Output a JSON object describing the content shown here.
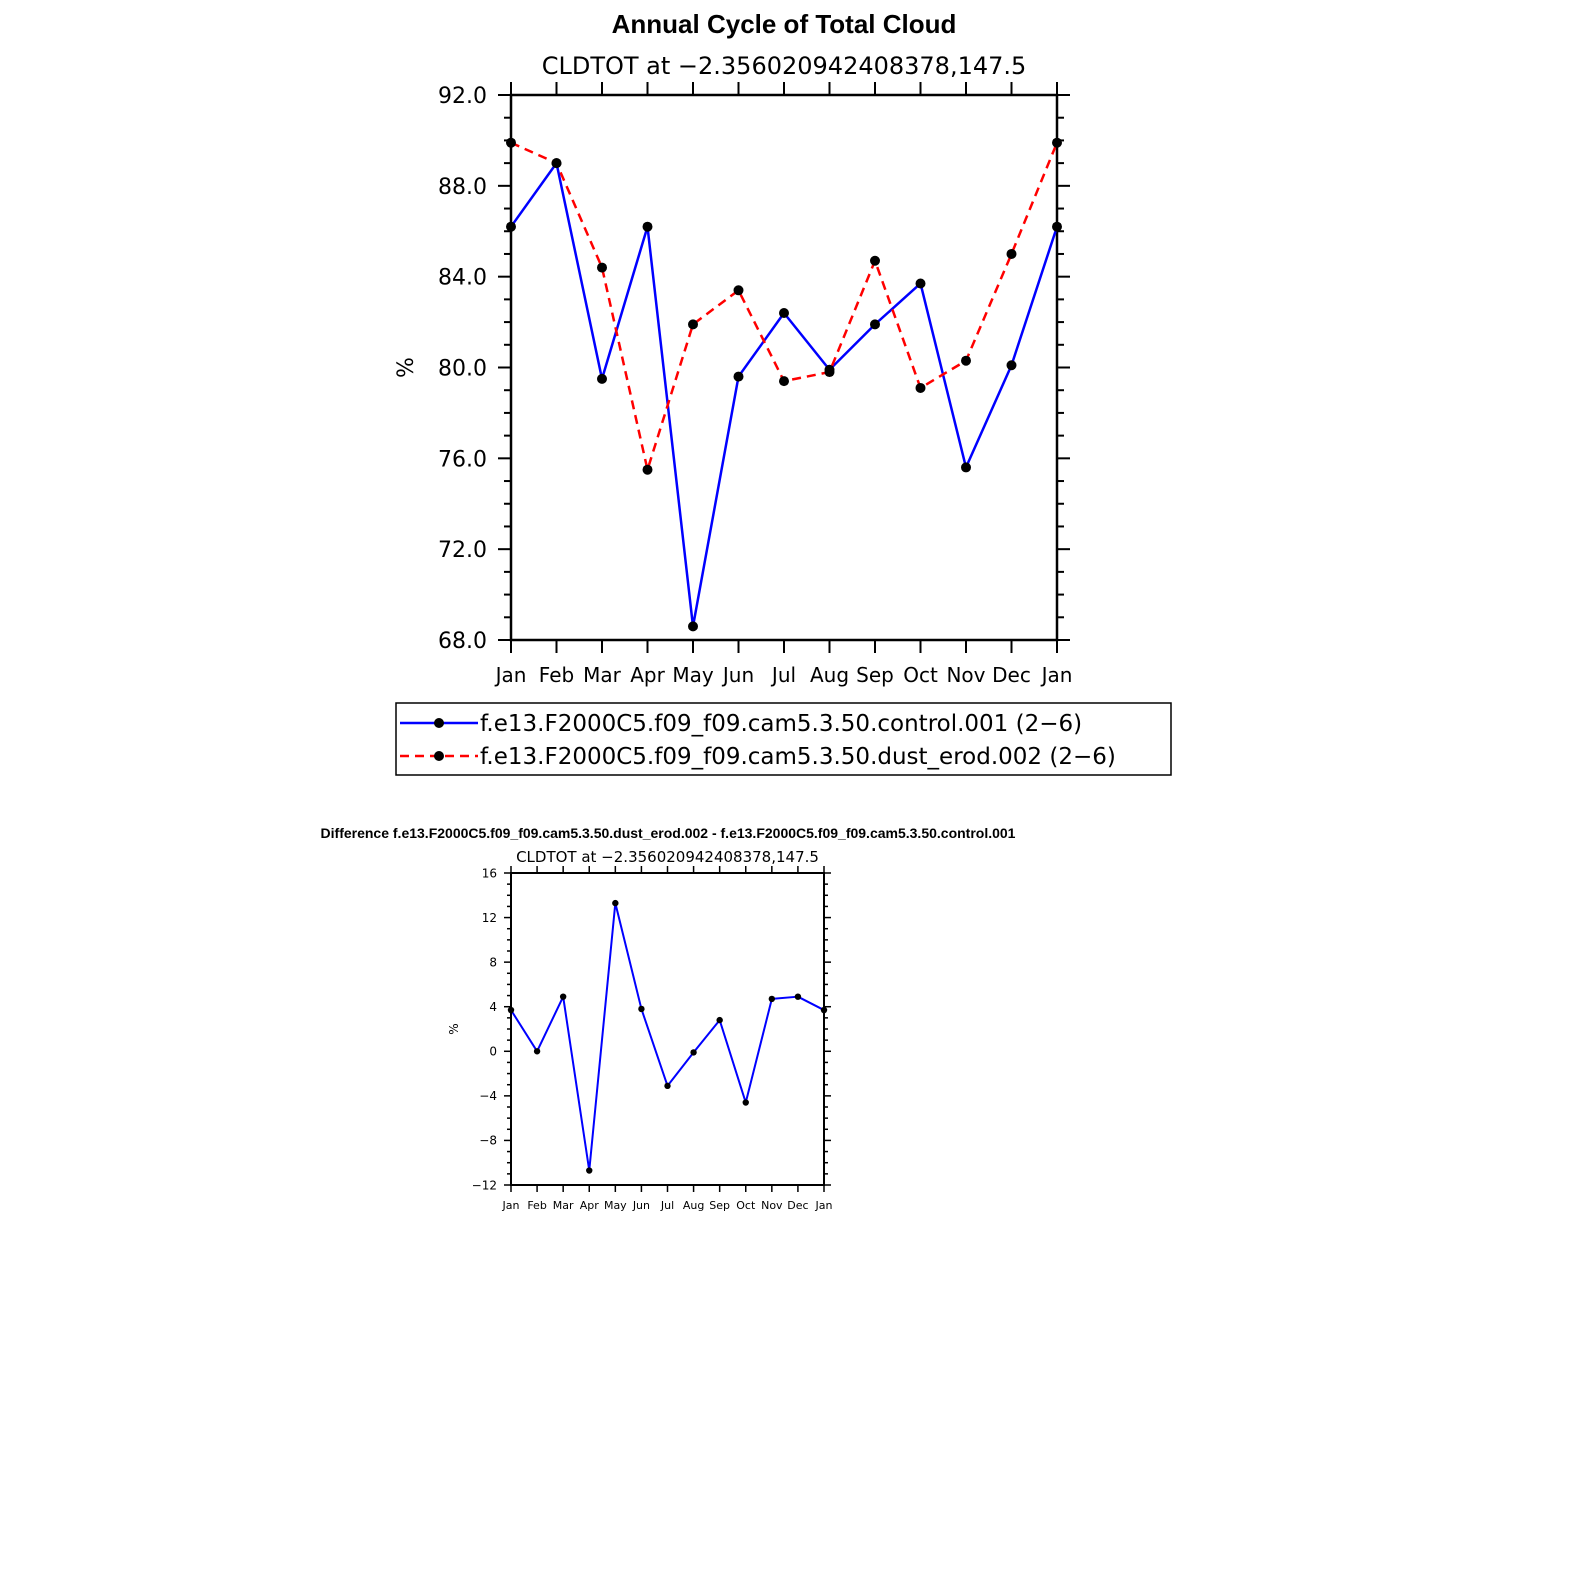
{
  "chart_data": [
    {
      "type": "line",
      "title": "Annual Cycle of Total Cloud",
      "subtitle": "CLDTOT at −2.356020942408378,147.5",
      "ylabel": "%",
      "xlabel": "",
      "ylim": [
        68,
        92
      ],
      "yticks": [
        "68.0",
        "72.0",
        "76.0",
        "80.0",
        "84.0",
        "88.0",
        "92.0"
      ],
      "ytick_values": [
        68,
        72,
        76,
        80,
        84,
        88,
        92
      ],
      "categories": [
        "Jan",
        "Feb",
        "Mar",
        "Apr",
        "May",
        "Jun",
        "Jul",
        "Aug",
        "Sep",
        "Oct",
        "Nov",
        "Dec",
        "Jan"
      ],
      "grid": false,
      "legend_position": "bottom",
      "series": [
        {
          "name": "f.e13.F2000C5.f09_f09.cam5.3.50.control.001 (2−6)",
          "color": "#0000ff",
          "style": "solid",
          "values": [
            86.2,
            89.0,
            79.5,
            86.2,
            68.6,
            79.6,
            82.4,
            79.9,
            81.9,
            83.7,
            75.6,
            80.1,
            86.2
          ]
        },
        {
          "name": "f.e13.F2000C5.f09_f09.cam5.3.50.dust_erod.002 (2−6)",
          "color": "#ff0000",
          "style": "dashed",
          "values": [
            89.9,
            89.0,
            84.4,
            75.5,
            81.9,
            83.4,
            79.4,
            79.8,
            84.7,
            79.1,
            80.3,
            85.0,
            89.9
          ]
        }
      ]
    },
    {
      "type": "line",
      "title": "Difference f.e13.F2000C5.f09_f09.cam5.3.50.dust_erod.002 - f.e13.F2000C5.f09_f09.cam5.3.50.control.001",
      "subtitle": "CLDTOT at −2.356020942408378,147.5",
      "ylabel": "%",
      "xlabel": "",
      "ylim": [
        -12,
        16
      ],
      "yticks": [
        "−12",
        "−8",
        "−4",
        "0",
        "4",
        "8",
        "12",
        "16"
      ],
      "ytick_values": [
        -12,
        -8,
        -4,
        0,
        4,
        8,
        12,
        16
      ],
      "categories": [
        "Jan",
        "Feb",
        "Mar",
        "Apr",
        "May",
        "Jun",
        "Jul",
        "Aug",
        "Sep",
        "Oct",
        "Nov",
        "Dec",
        "Jan"
      ],
      "grid": false,
      "series": [
        {
          "color": "#0000ff",
          "style": "solid",
          "values": [
            3.7,
            0.0,
            4.9,
            -10.7,
            13.3,
            3.8,
            -3.1,
            -0.1,
            2.8,
            -4.6,
            4.7,
            4.9,
            3.7
          ]
        }
      ]
    }
  ]
}
